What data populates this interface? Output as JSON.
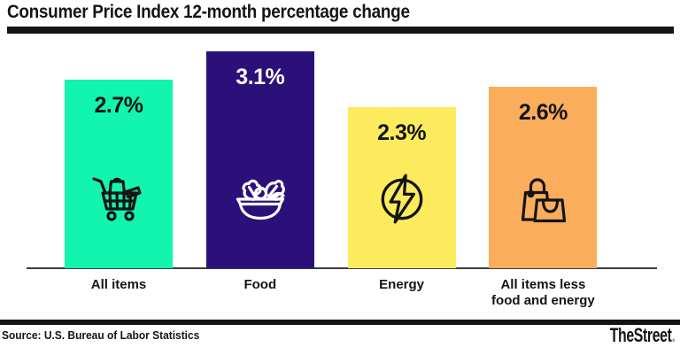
{
  "header": {
    "title": "Consumer Price Index 12-month percentage change",
    "rule_color": "#141414"
  },
  "chart_data": {
    "type": "bar",
    "title": "Consumer Price Index 12-month percentage change",
    "categories": [
      "All items",
      "Food",
      "Energy",
      "All items less food and energy"
    ],
    "tick_labels": [
      "All items",
      "Food",
      "Energy",
      "All items less\nfood and energy"
    ],
    "values": [
      2.7,
      3.1,
      2.3,
      2.6
    ],
    "value_labels": [
      "2.7%",
      "3.1%",
      "2.3%",
      "2.6%"
    ],
    "unit": "%",
    "ylim": [
      0,
      3.3
    ],
    "grid": false,
    "legend": "none",
    "bar_colors": [
      "#12F5AF",
      "#2C107A",
      "#FCEC5D",
      "#FAAD5B"
    ],
    "value_label_colors": [
      "#141414",
      "#FFFFFF",
      "#141414",
      "#141414"
    ],
    "icon_colors": [
      "#141414",
      "#FFFFFF",
      "#141414",
      "#141414"
    ],
    "icons": [
      "shopping-cart-icon",
      "salad-bowl-icon",
      "energy-bolt-icon",
      "shopping-bags-icon"
    ],
    "baseline_color": "#3C3C46"
  },
  "footer": {
    "rule_color": "#141414",
    "source": "Source: U.S. Bureau of Labor Statistics",
    "brand": "TheStreet",
    "brand_suffix": "."
  }
}
